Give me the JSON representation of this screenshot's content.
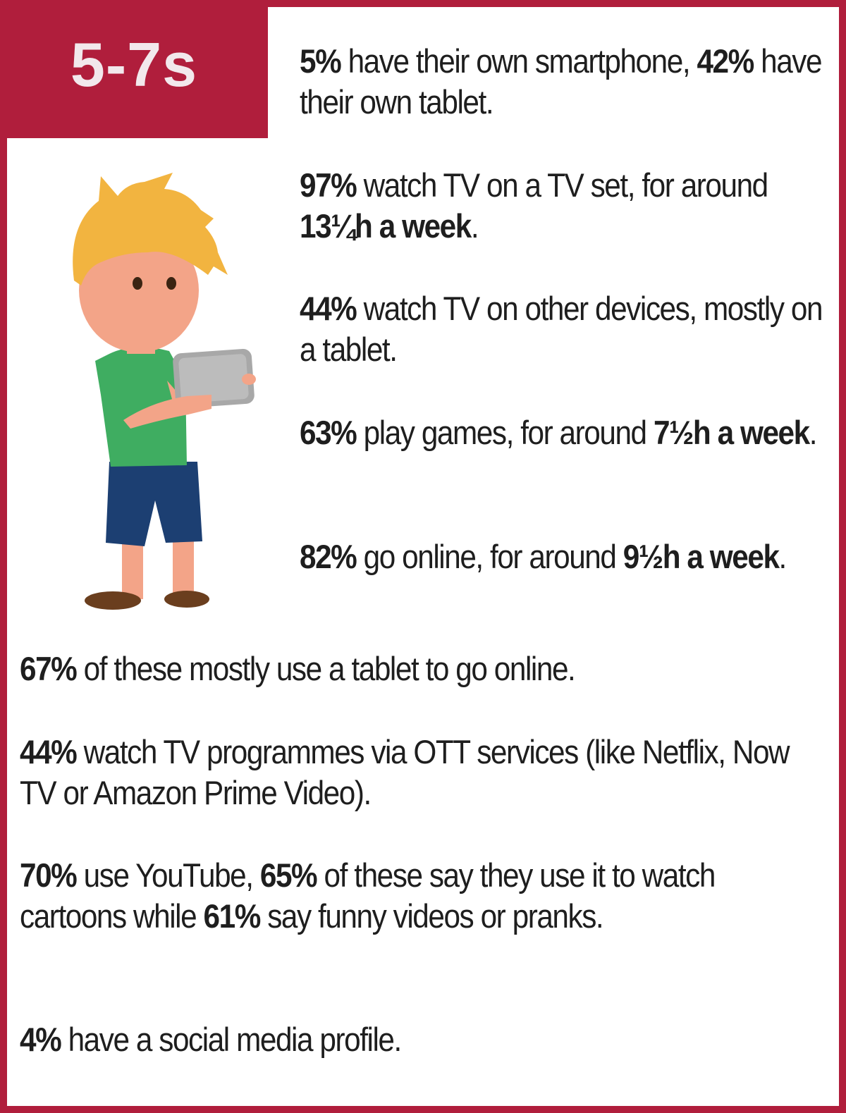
{
  "header": {
    "age_group": "5-7s"
  },
  "colors": {
    "accent": "#b01e3c",
    "hair": "#f2b440",
    "skin": "#f3a488",
    "shirt": "#3fad61",
    "shorts": "#1c3f72",
    "shoes": "#6a3e1e",
    "tablet": "#a8a8a8"
  },
  "illustration": {
    "icon": "boy-with-tablet-icon"
  },
  "facts": [
    {
      "id": "smartphone-tablet-ownership",
      "parts": [
        {
          "t": "5%",
          "b": true
        },
        {
          "t": " have their own smartphone, "
        },
        {
          "t": "42%",
          "b": true
        },
        {
          "t": " have their own tablet."
        }
      ]
    },
    {
      "id": "tv-set-viewing",
      "parts": [
        {
          "t": "97%",
          "b": true
        },
        {
          "t": " watch TV on a TV set, for around "
        },
        {
          "t": "13¼h a week",
          "b": true
        },
        {
          "t": "."
        }
      ]
    },
    {
      "id": "tv-other-devices",
      "parts": [
        {
          "t": "44%",
          "b": true
        },
        {
          "t": " watch TV on other devices, mostly on a tablet."
        }
      ]
    },
    {
      "id": "gaming",
      "parts": [
        {
          "t": "63%",
          "b": true
        },
        {
          "t": " play games, for around "
        },
        {
          "t": "7½h a week",
          "b": true
        },
        {
          "t": "."
        }
      ]
    },
    {
      "id": "online",
      "parts": [
        {
          "t": "82%",
          "b": true
        },
        {
          "t": " go online, for around "
        },
        {
          "t": "9½h a week",
          "b": true
        },
        {
          "t": "."
        }
      ]
    },
    {
      "id": "tablet-online",
      "parts": [
        {
          "t": "67%",
          "b": true
        },
        {
          "t": " of these mostly use a tablet to go online."
        }
      ]
    },
    {
      "id": "ott-services",
      "parts": [
        {
          "t": "44%",
          "b": true
        },
        {
          "t": " watch TV programmes via OTT services (like Netflix, Now TV or Amazon Prime Video)."
        }
      ]
    },
    {
      "id": "youtube",
      "parts": [
        {
          "t": "70%",
          "b": true
        },
        {
          "t": " use YouTube, "
        },
        {
          "t": "65%",
          "b": true
        },
        {
          "t": " of these say they use it to watch cartoons while "
        },
        {
          "t": "61%",
          "b": true
        },
        {
          "t": " say funny videos or pranks."
        }
      ]
    },
    {
      "id": "social-media",
      "parts": [
        {
          "t": "4%",
          "b": true
        },
        {
          "t": " have a social media profile."
        }
      ]
    }
  ]
}
